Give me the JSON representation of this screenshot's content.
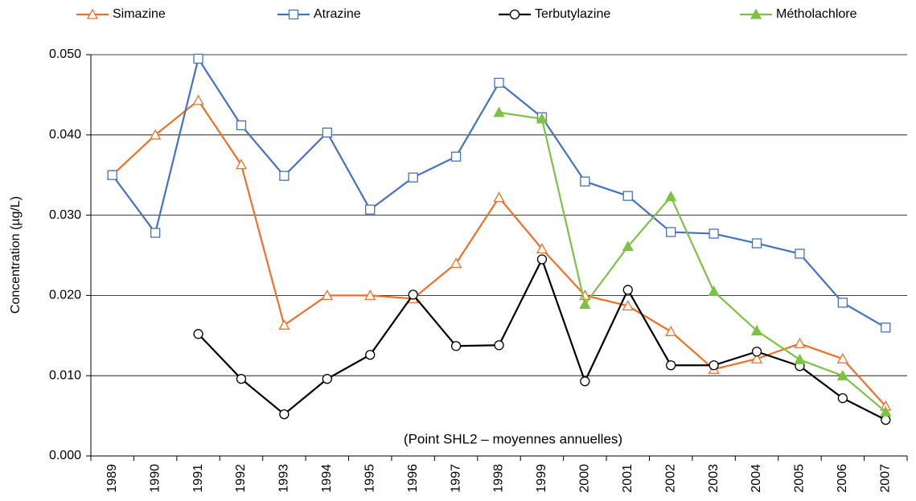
{
  "chart_data": {
    "type": "line",
    "y_label": "Concentration (µg/L)",
    "annotation": "(Point SHL2 – moyennes annuelles)",
    "categories": [
      "1989",
      "1990",
      "1991",
      "1992",
      "1993",
      "1994",
      "1995",
      "1996",
      "1997",
      "1998",
      "1999",
      "2000",
      "2001",
      "2002",
      "2003",
      "2004",
      "2005",
      "2006",
      "2007"
    ],
    "series": [
      {
        "name": "Simazine",
        "color": "#f07028",
        "marker": "triangle-open",
        "values": [
          0.035,
          0.04,
          0.0443,
          0.0363,
          0.0163,
          0.02,
          0.02,
          0.0196,
          0.024,
          0.0322,
          0.0258,
          0.02,
          0.0187,
          0.0155,
          0.0108,
          0.0121,
          0.014,
          0.0121,
          0.0062
        ]
      },
      {
        "name": "Atrazine",
        "color": "#4472c4",
        "marker": "square-open",
        "values": [
          0.035,
          0.0278,
          0.0495,
          0.0412,
          0.0349,
          0.0403,
          0.0307,
          0.0347,
          0.0373,
          0.0465,
          0.0422,
          0.0342,
          0.0324,
          0.0279,
          0.0277,
          0.0265,
          0.0252,
          0.0191,
          0.016
        ]
      },
      {
        "name": "Terbutylazine",
        "color": "#000000",
        "marker": "circle-open",
        "values": [
          null,
          null,
          0.0152,
          0.0096,
          0.0052,
          0.0096,
          0.0126,
          0.0201,
          0.0137,
          0.0138,
          0.0245,
          0.0093,
          0.0207,
          0.0113,
          0.0113,
          0.013,
          0.0112,
          0.0072,
          0.0045
        ]
      },
      {
        "name": "Métholachlore",
        "color": "#7cc243",
        "marker": "triangle-filled",
        "values": [
          null,
          null,
          null,
          null,
          null,
          null,
          null,
          null,
          null,
          0.0428,
          0.042,
          0.0189,
          0.0261,
          0.0323,
          0.0205,
          0.0156,
          0.012,
          0.01,
          0.0055
        ]
      }
    ],
    "ylim": [
      0,
      0.05
    ],
    "yticks": [
      {
        "value": 0,
        "label": "0.000"
      },
      {
        "value": 0.01,
        "label": "0.010"
      },
      {
        "value": 0.02,
        "label": "0.020"
      },
      {
        "value": 0.03,
        "label": "0.030"
      },
      {
        "value": 0.04,
        "label": "0.040"
      },
      {
        "value": 0.05,
        "label": "0.050"
      }
    ],
    "grid": true,
    "legend": "top"
  }
}
